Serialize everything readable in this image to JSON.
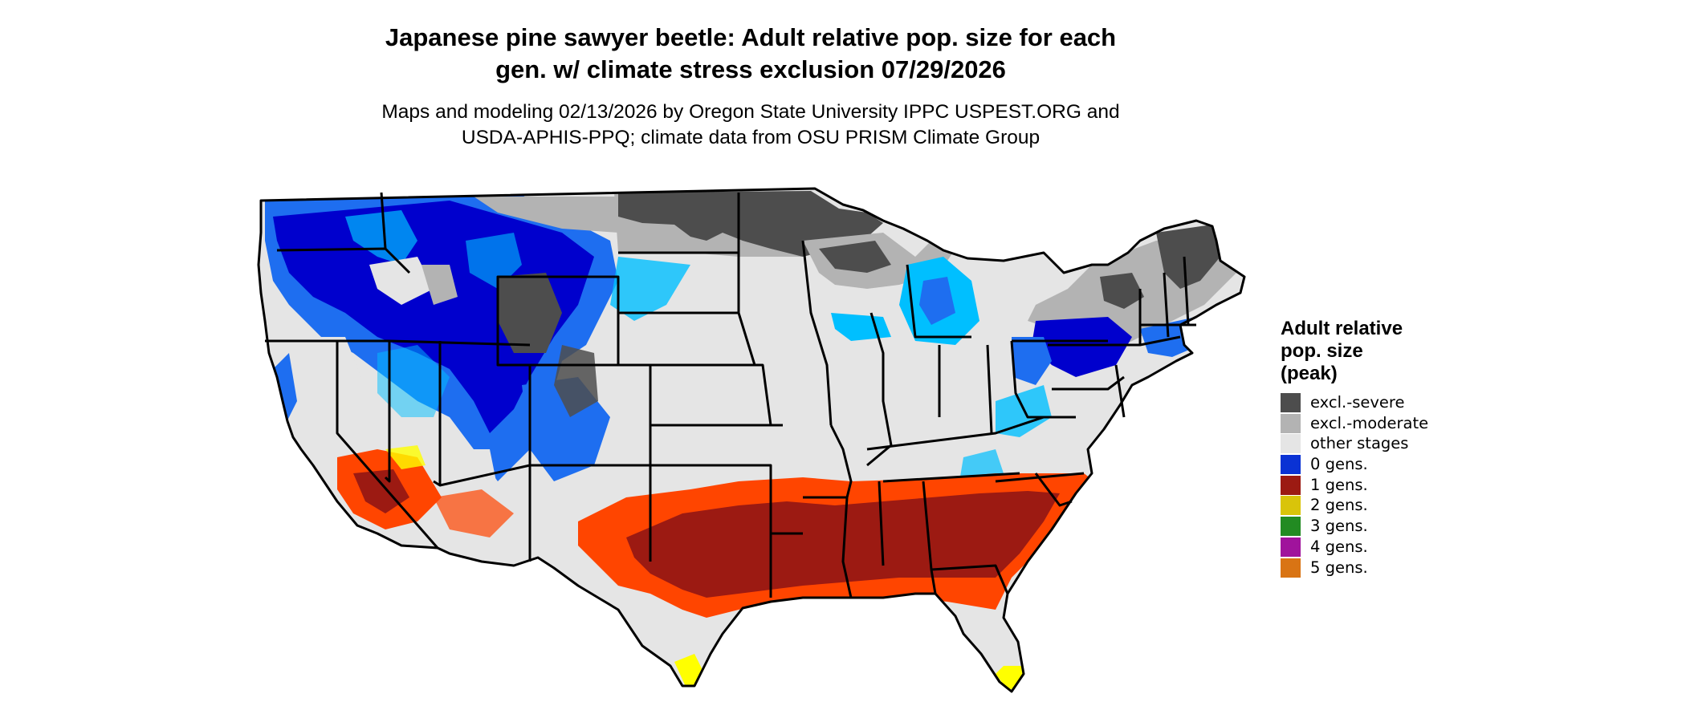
{
  "header": {
    "title_line1": "Japanese pine sawyer beetle: Adult relative pop. size for each",
    "title_line2": "gen. w/ climate stress exclusion 07/29/2026",
    "subtitle_line1": "Maps and modeling 02/13/2026 by Oregon State University IPPC USPEST.ORG and",
    "subtitle_line2": "USDA-APHIS-PPQ; climate data from OSU PRISM Climate Group"
  },
  "legend": {
    "title_line1": "Adult relative",
    "title_line2": "pop. size",
    "title_line3": "(peak)",
    "items": [
      {
        "label": "excl.-severe",
        "color": "#4d4d4d"
      },
      {
        "label": "excl.-moderate",
        "color": "#b3b3b3"
      },
      {
        "label": "other stages",
        "color": "#e5e5e5"
      },
      {
        "label": "0 gens.",
        "color": "#0a32d4"
      },
      {
        "label": "1 gens.",
        "color": "#9c1a12"
      },
      {
        "label": "2 gens.",
        "color": "#d9c40a"
      },
      {
        "label": "3 gens.",
        "color": "#228b22"
      },
      {
        "label": "4 gens.",
        "color": "#a0139c"
      },
      {
        "label": "5 gens.",
        "color": "#d97414"
      }
    ]
  },
  "map_colors": {
    "deep_blue": "#0000cd",
    "mid_blue": "#1e6ef0",
    "light_blue": "#00bfff",
    "orange_red": "#ff4500",
    "dark_red": "#9c1a12",
    "yellow": "#ffff00"
  }
}
